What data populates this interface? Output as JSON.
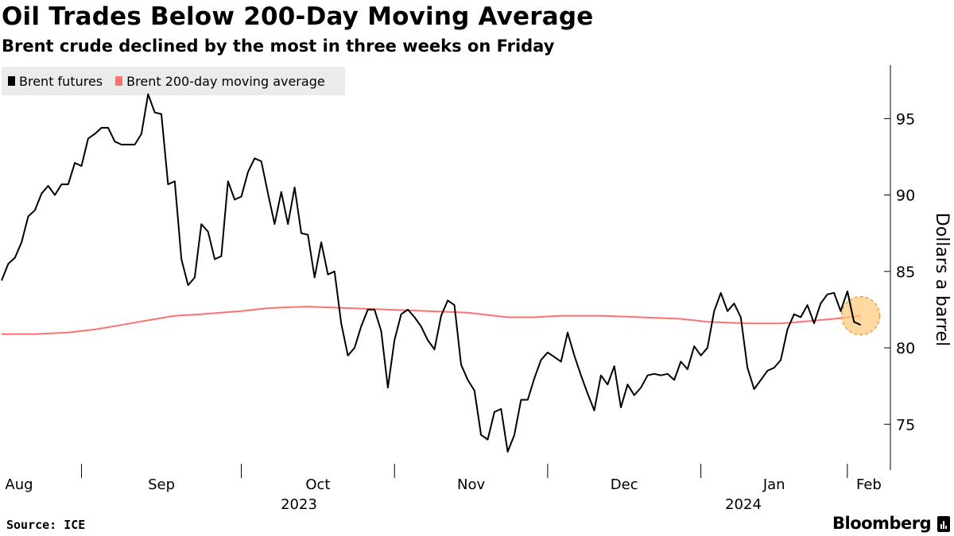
{
  "chart_data": {
    "type": "line",
    "title": "Oil Trades Below 200-Day Moving Average",
    "subtitle": "Brent crude declined by the most in three weeks on Friday",
    "ylabel": "Dollars a barrel",
    "xlabel": "",
    "ylim": [
      72,
      98.5
    ],
    "yticks": [
      75,
      80,
      85,
      90,
      95
    ],
    "x_months": [
      "Aug",
      "Sep",
      "Oct",
      "Nov",
      "Dec",
      "Jan",
      "Feb"
    ],
    "x_years": [
      "2023",
      "2024"
    ],
    "x_range_days": [
      0,
      138
    ],
    "month_start_days": [
      0,
      12,
      36,
      59,
      82,
      105,
      127
    ],
    "legend_position": "top-left",
    "series": [
      {
        "name": "Brent futures",
        "color": "#000000",
        "points": [
          [
            0,
            84.4
          ],
          [
            1,
            85.5
          ],
          [
            2,
            85.9
          ],
          [
            3,
            86.9
          ],
          [
            4,
            88.6
          ],
          [
            5,
            89.0
          ],
          [
            6,
            90.1
          ],
          [
            7,
            90.6
          ],
          [
            8,
            90.0
          ],
          [
            9,
            90.7
          ],
          [
            10,
            90.7
          ],
          [
            11,
            92.1
          ],
          [
            12,
            91.9
          ],
          [
            13,
            93.7
          ],
          [
            14,
            94.0
          ],
          [
            15,
            94.4
          ],
          [
            16,
            94.4
          ],
          [
            17,
            93.5
          ],
          [
            18,
            93.3
          ],
          [
            19,
            93.3
          ],
          [
            20,
            93.3
          ],
          [
            21,
            94.0
          ],
          [
            22,
            96.6
          ],
          [
            23,
            95.4
          ],
          [
            24,
            95.3
          ],
          [
            25,
            90.7
          ],
          [
            26,
            90.9
          ],
          [
            27,
            85.8
          ],
          [
            28,
            84.1
          ],
          [
            29,
            84.6
          ],
          [
            30,
            88.1
          ],
          [
            31,
            87.6
          ],
          [
            32,
            85.8
          ],
          [
            33,
            86.0
          ],
          [
            34,
            90.9
          ],
          [
            35,
            89.7
          ],
          [
            36,
            89.9
          ],
          [
            37,
            91.5
          ],
          [
            38,
            92.4
          ],
          [
            39,
            92.2
          ],
          [
            40,
            90.1
          ],
          [
            41,
            88.1
          ],
          [
            42,
            90.2
          ],
          [
            43,
            88.1
          ],
          [
            44,
            90.5
          ],
          [
            45,
            87.5
          ],
          [
            46,
            87.4
          ],
          [
            47,
            84.6
          ],
          [
            48,
            86.9
          ],
          [
            49,
            84.8
          ],
          [
            50,
            85.0
          ],
          [
            51,
            81.6
          ],
          [
            52,
            79.5
          ],
          [
            53,
            80.0
          ],
          [
            54,
            81.4
          ],
          [
            55,
            82.5
          ],
          [
            56,
            82.5
          ],
          [
            57,
            81.1
          ],
          [
            58,
            77.4
          ],
          [
            59,
            80.5
          ],
          [
            60,
            82.2
          ],
          [
            61,
            82.5
          ],
          [
            62,
            82.0
          ],
          [
            63,
            81.4
          ],
          [
            64,
            80.5
          ],
          [
            65,
            79.9
          ],
          [
            66,
            82.1
          ],
          [
            67,
            83.1
          ],
          [
            68,
            82.8
          ],
          [
            69,
            78.9
          ],
          [
            70,
            77.9
          ],
          [
            71,
            77.2
          ],
          [
            72,
            74.3
          ],
          [
            73,
            74.0
          ],
          [
            74,
            75.8
          ],
          [
            75,
            76.0
          ],
          [
            76,
            73.2
          ],
          [
            77,
            74.3
          ],
          [
            78,
            76.6
          ],
          [
            79,
            76.6
          ],
          [
            80,
            78.0
          ],
          [
            81,
            79.2
          ],
          [
            82,
            79.7
          ],
          [
            83,
            79.4
          ],
          [
            84,
            79.1
          ],
          [
            85,
            81.0
          ],
          [
            86,
            79.5
          ],
          [
            87,
            78.2
          ],
          [
            88,
            77.0
          ],
          [
            89,
            75.9
          ],
          [
            90,
            78.2
          ],
          [
            91,
            77.6
          ],
          [
            92,
            78.8
          ],
          [
            93,
            76.1
          ],
          [
            94,
            77.6
          ],
          [
            95,
            76.9
          ],
          [
            96,
            77.4
          ],
          [
            97,
            78.2
          ],
          [
            98,
            78.3
          ],
          [
            99,
            78.2
          ],
          [
            100,
            78.3
          ],
          [
            101,
            77.9
          ],
          [
            102,
            79.1
          ],
          [
            103,
            78.6
          ],
          [
            104,
            80.1
          ],
          [
            105,
            79.5
          ],
          [
            106,
            80.0
          ],
          [
            107,
            82.4
          ],
          [
            108,
            83.6
          ],
          [
            109,
            82.4
          ],
          [
            110,
            82.9
          ],
          [
            111,
            82.0
          ],
          [
            112,
            78.7
          ],
          [
            113,
            77.3
          ],
          [
            114,
            77.9
          ],
          [
            115,
            78.5
          ],
          [
            116,
            78.7
          ],
          [
            117,
            79.2
          ],
          [
            118,
            81.2
          ],
          [
            119,
            82.2
          ],
          [
            120,
            82.0
          ],
          [
            121,
            82.8
          ],
          [
            122,
            81.6
          ],
          [
            123,
            82.9
          ],
          [
            124,
            83.5
          ],
          [
            125,
            83.6
          ],
          [
            126,
            82.4
          ],
          [
            127,
            83.7
          ],
          [
            128,
            81.7
          ],
          [
            129,
            81.5
          ]
        ]
      },
      {
        "name": "Brent 200-day moving average",
        "color": "#ff7070",
        "points": [
          [
            0,
            80.9
          ],
          [
            5,
            80.9
          ],
          [
            10,
            81.0
          ],
          [
            14,
            81.2
          ],
          [
            18,
            81.5
          ],
          [
            22,
            81.8
          ],
          [
            26,
            82.1
          ],
          [
            30,
            82.2
          ],
          [
            36,
            82.4
          ],
          [
            40,
            82.6
          ],
          [
            46,
            82.7
          ],
          [
            52,
            82.6
          ],
          [
            58,
            82.5
          ],
          [
            64,
            82.4
          ],
          [
            70,
            82.3
          ],
          [
            76,
            82.0
          ],
          [
            80,
            82.0
          ],
          [
            84,
            82.1
          ],
          [
            90,
            82.1
          ],
          [
            96,
            82.0
          ],
          [
            102,
            81.9
          ],
          [
            106,
            81.7
          ],
          [
            112,
            81.6
          ],
          [
            117,
            81.6
          ],
          [
            120,
            81.7
          ],
          [
            125,
            81.9
          ],
          [
            127,
            82.0
          ],
          [
            129,
            82.1
          ]
        ]
      }
    ],
    "highlight": {
      "x": 129,
      "y": 82.1,
      "color": "#ffcc80"
    }
  },
  "footer": {
    "source": "Source: ICE",
    "brand": "Bloomberg"
  }
}
